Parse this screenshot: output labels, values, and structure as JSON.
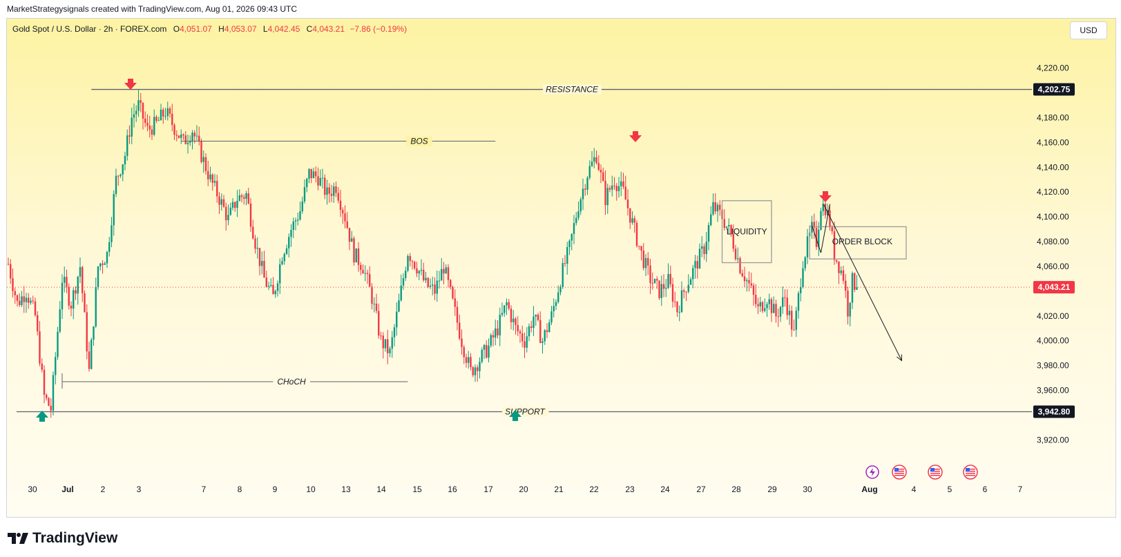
{
  "header": {
    "credit": "MarketStrategysignals created with TradingView.com, Aug 01, 2026 09:43 UTC"
  },
  "symbol": {
    "name": "Gold Spot / U.S. Dollar · 2h · FOREX.com",
    "open_label": "O",
    "open": "4,051.07",
    "high_label": "H",
    "high": "4,053.07",
    "low_label": "L",
    "low": "4,042.45",
    "close_label": "C",
    "close": "4,043.21",
    "change": "−7.86 (−0.19%)"
  },
  "currency": "USD",
  "footer": {
    "brand": "TradingView"
  },
  "colors": {
    "up": "#089981",
    "down": "#f23645",
    "background_top": "#fdf3a3",
    "background_bottom": "#fffdf2"
  },
  "chart_data": {
    "type": "candlestick",
    "y_axis": {
      "ticks": [
        "4,220.00",
        "4,180.00",
        "4,160.00",
        "4,140.00",
        "4,120.00",
        "4,100.00",
        "4,080.00",
        "4,060.00",
        "4,020.00",
        "4,000.00",
        "3,980.00",
        "3,960.00",
        "3,920.00"
      ],
      "ylim": [
        3908,
        4232
      ]
    },
    "x_axis": {
      "ticks": [
        "30",
        "Jul",
        "2",
        "3",
        "7",
        "8",
        "9",
        "10",
        "13",
        "14",
        "15",
        "16",
        "17",
        "20",
        "21",
        "22",
        "23",
        "24",
        "27",
        "28",
        "29",
        "30",
        "Aug",
        "4",
        "5",
        "6",
        "7"
      ]
    },
    "price_labels": {
      "resistance": "4,202.75",
      "current": "4,043.21",
      "support": "3,942.80"
    },
    "levels": {
      "resistance": 4202.75,
      "support": 3942.8,
      "current": 4043.21,
      "bos": 4161,
      "choch": 3967
    },
    "annotations": {
      "resistance": "RESISTANCE",
      "support": "SUPPORT",
      "bos": "BOS",
      "choch": "CHoCH",
      "liquidity": "LIQUIDITY",
      "order_block": "ORDER BLOCK"
    },
    "path": [
      [
        0,
        4062
      ],
      [
        4,
        4030
      ],
      [
        8,
        4040
      ],
      [
        12,
        4020
      ],
      [
        16,
        3955
      ],
      [
        19,
        3945
      ],
      [
        24,
        4050
      ],
      [
        28,
        4030
      ],
      [
        32,
        4060
      ],
      [
        36,
        3975
      ],
      [
        40,
        4060
      ],
      [
        44,
        4070
      ],
      [
        48,
        4130
      ],
      [
        52,
        4150
      ],
      [
        55,
        4180
      ],
      [
        58,
        4190
      ],
      [
        62,
        4170
      ],
      [
        66,
        4175
      ],
      [
        70,
        4185
      ],
      [
        74,
        4172
      ],
      [
        78,
        4160
      ],
      [
        82,
        4170
      ],
      [
        86,
        4150
      ],
      [
        90,
        4130
      ],
      [
        94,
        4115
      ],
      [
        98,
        4098
      ],
      [
        102,
        4115
      ],
      [
        106,
        4118
      ],
      [
        110,
        4080
      ],
      [
        114,
        4050
      ],
      [
        118,
        4035
      ],
      [
        122,
        4070
      ],
      [
        126,
        4090
      ],
      [
        130,
        4105
      ],
      [
        134,
        4135
      ],
      [
        138,
        4132
      ],
      [
        142,
        4118
      ],
      [
        146,
        4125
      ],
      [
        150,
        4100
      ],
      [
        154,
        4070
      ],
      [
        158,
        4060
      ],
      [
        162,
        4035
      ],
      [
        166,
        4000
      ],
      [
        170,
        3990
      ],
      [
        174,
        4030
      ],
      [
        178,
        4072
      ],
      [
        182,
        4060
      ],
      [
        186,
        4045
      ],
      [
        190,
        4040
      ],
      [
        194,
        4060
      ],
      [
        198,
        4030
      ],
      [
        202,
        4000
      ],
      [
        206,
        3975
      ],
      [
        210,
        3985
      ],
      [
        214,
        3995
      ],
      [
        218,
        4010
      ],
      [
        222,
        4030
      ],
      [
        226,
        4010
      ],
      [
        230,
        4000
      ],
      [
        234,
        4020
      ],
      [
        238,
        4000
      ],
      [
        242,
        4020
      ],
      [
        246,
        4050
      ],
      [
        250,
        4075
      ],
      [
        254,
        4110
      ],
      [
        258,
        4135
      ],
      [
        262,
        4150
      ],
      [
        266,
        4115
      ],
      [
        270,
        4130
      ],
      [
        274,
        4120
      ],
      [
        278,
        4095
      ],
      [
        282,
        4070
      ],
      [
        286,
        4050
      ],
      [
        290,
        4040
      ],
      [
        294,
        4048
      ],
      [
        298,
        4025
      ],
      [
        302,
        4045
      ],
      [
        306,
        4060
      ],
      [
        310,
        4075
      ],
      [
        314,
        4108
      ],
      [
        318,
        4100
      ],
      [
        322,
        4085
      ],
      [
        326,
        4060
      ],
      [
        330,
        4045
      ],
      [
        334,
        4025
      ],
      [
        338,
        4035
      ],
      [
        342,
        4020
      ],
      [
        346,
        4035
      ],
      [
        350,
        4005
      ],
      [
        354,
        4065
      ],
      [
        358,
        4090
      ],
      [
        360,
        4080
      ],
      [
        362,
        4110
      ],
      [
        364,
        4108
      ],
      [
        366,
        4095
      ],
      [
        368,
        4070
      ],
      [
        372,
        4052
      ],
      [
        374,
        4025
      ],
      [
        376,
        4048
      ],
      [
        378,
        4043
      ]
    ],
    "projection": {
      "from": [
        362,
        4110
      ],
      "to": [
        398,
        3984
      ]
    },
    "x_range": [
      0,
      400
    ],
    "event_icons": [
      "lightning-icon",
      "us-flag-icon",
      "us-flag-icon",
      "us-flag-icon"
    ]
  }
}
